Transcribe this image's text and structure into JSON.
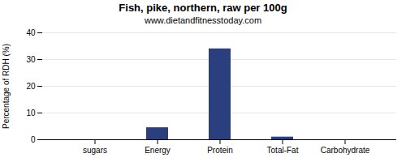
{
  "chart_data": {
    "type": "bar",
    "title": "Fish, pike, northern, raw per 100g",
    "subtitle": "www.dietandfitnesstoday.com",
    "categories": [
      "sugars",
      "Energy",
      "Protein",
      "Total-Fat",
      "Carbohydrate"
    ],
    "values": [
      0,
      4.5,
      34,
      1.0,
      0
    ],
    "color": "#2b3f7e",
    "ylabel": "Percentage of RDH (%)",
    "ylim": [
      0,
      40
    ],
    "yticks": [
      0,
      10,
      20,
      30,
      40
    ],
    "grid": true
  }
}
